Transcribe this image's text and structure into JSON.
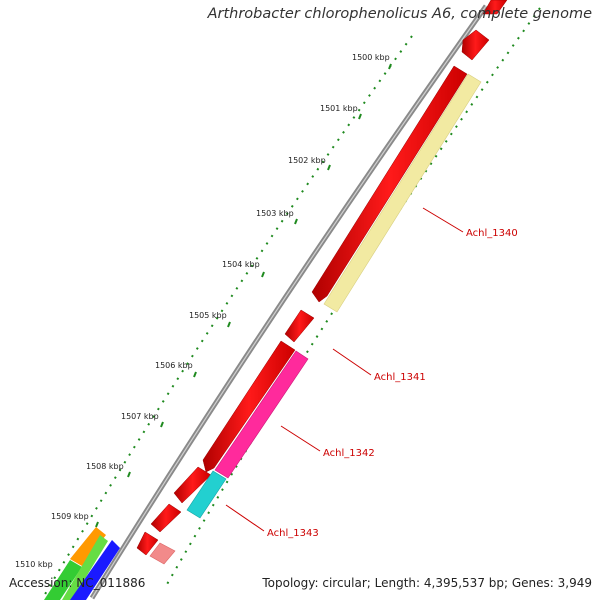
{
  "title": "Arthrobacter chlorophenolicus A6, complete genome",
  "footer": {
    "accession": "Accession: NC_011886",
    "summary": "Topology: circular; Length: 4,395,537 bp; Genes: 3,949"
  },
  "scale_labels": [
    "1500 kbp",
    "1501 kbp",
    "1502 kbp",
    "1503 kbp",
    "1504 kbp",
    "1505 kbp",
    "1506 kbp",
    "1507 kbp",
    "1508 kbp",
    "1509 kbp",
    "1510 kbp"
  ],
  "gene_labels": [
    "Achl_1340",
    "Achl_1341",
    "Achl_1342",
    "Achl_1343"
  ],
  "colors": {
    "backbone": "#8a8a8a",
    "forward_gene": "#ff0000",
    "scale_ticks": "#1f8a1f",
    "achl_1340": "#f2eaa2",
    "achl_1342": "#ff2a9c",
    "achl_1343": "#22d0d0",
    "light_red": "#f28a8a",
    "orange": "#ff9900",
    "green": "#33cc33",
    "blue": "#1a1aff"
  }
}
